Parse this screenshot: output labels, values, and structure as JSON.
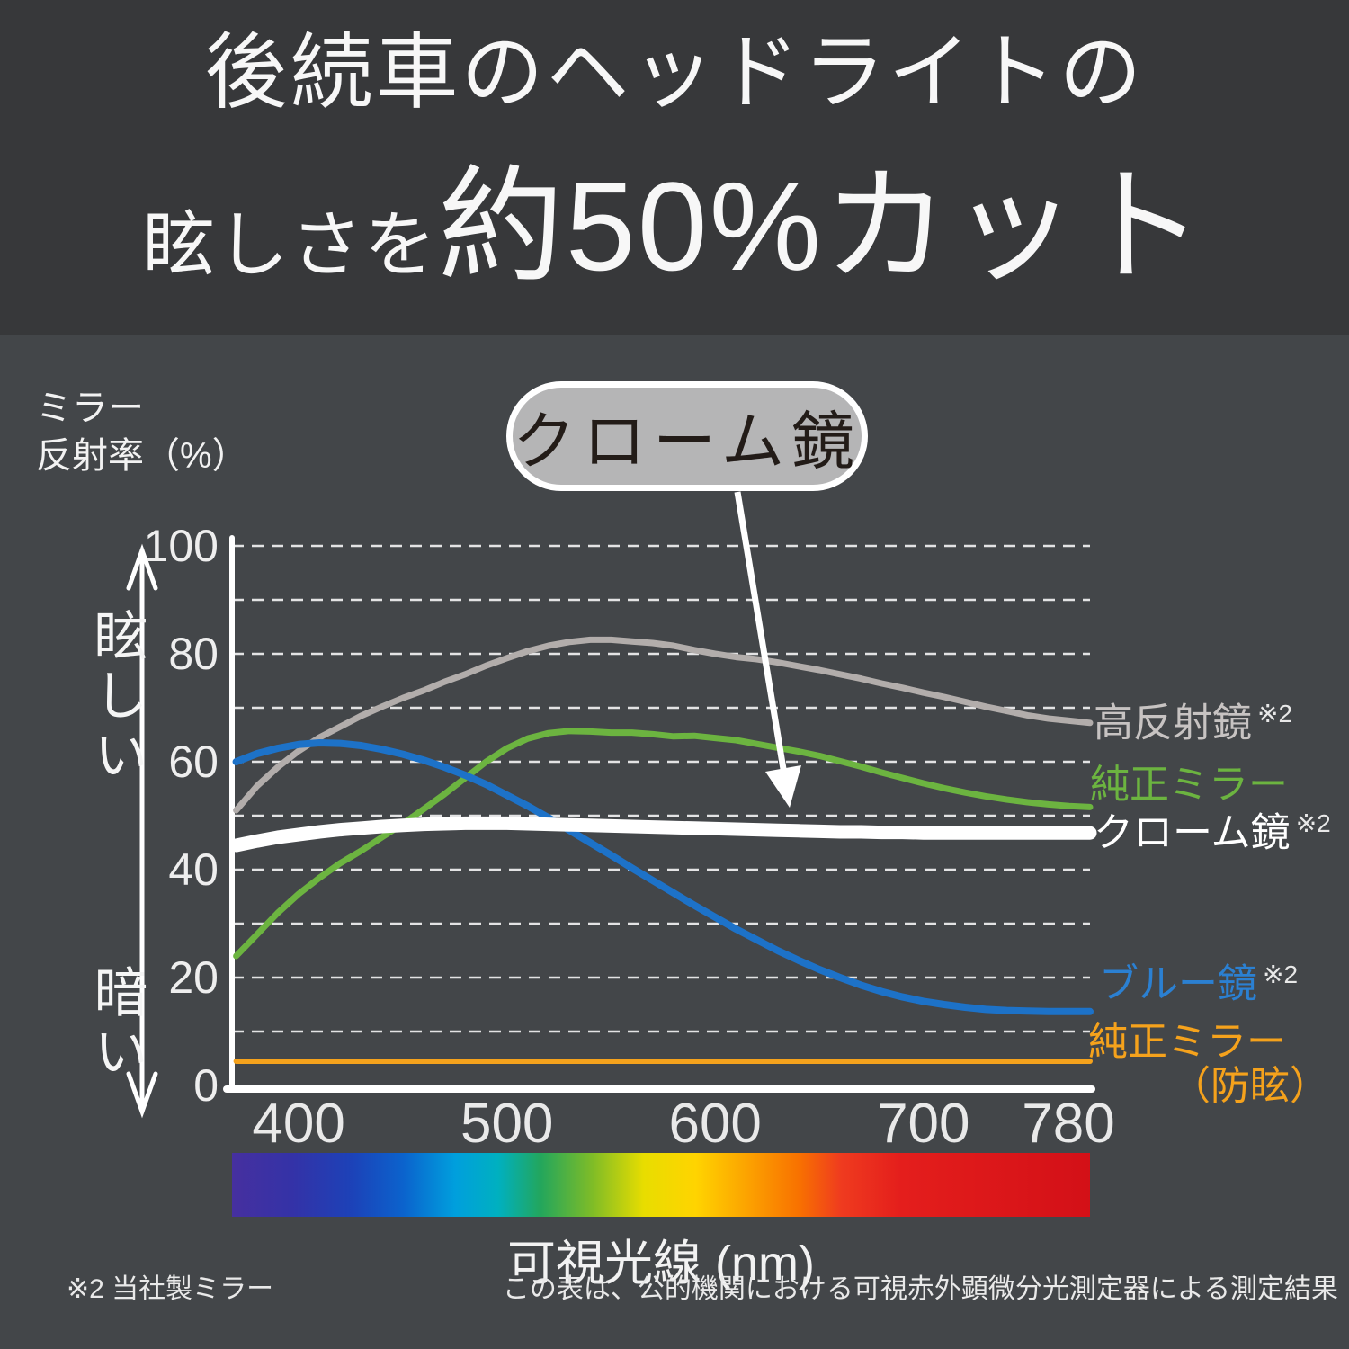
{
  "banner": {
    "title_line1": "後続車のヘッドライトの",
    "title_line2_small": "眩しさを",
    "title_line2_large": "約50%カット"
  },
  "chart": {
    "y_axis_title_line1": "ミラー",
    "y_axis_title_line2": "反射率（%）",
    "y_top_label": "眩しい",
    "y_bottom_label": "暗い",
    "callout_label": "クローム鏡",
    "x_axis_title": "可視光線 (nm)"
  },
  "chart_data": {
    "type": "line",
    "title": "後続車のヘッドライトの眩しさを約50%カット",
    "xlabel": "可視光線 (nm)",
    "ylabel": "ミラー反射率（%）",
    "xlim": [
      368,
      780
    ],
    "ylim": [
      0,
      100
    ],
    "grid": "horizontal dashed every 10",
    "legend_position": "right of curve ends",
    "x_ticks": [
      {
        "label": "400",
        "nm": 400
      },
      {
        "label": "500",
        "nm": 500
      },
      {
        "label": "600",
        "nm": 600
      },
      {
        "label": "700",
        "nm": 700
      },
      {
        "label": "780",
        "nm": 780
      }
    ],
    "y_ticks": [
      {
        "label": "100",
        "value": 100
      },
      {
        "label": "80",
        "value": 80
      },
      {
        "label": "60",
        "value": 60
      },
      {
        "label": "40",
        "value": 40
      },
      {
        "label": "20",
        "value": 20
      },
      {
        "label": "0",
        "value": 0
      }
    ],
    "x": [
      370,
      380,
      390,
      400,
      410,
      420,
      430,
      440,
      450,
      460,
      470,
      480,
      490,
      500,
      510,
      520,
      530,
      540,
      550,
      560,
      570,
      580,
      590,
      600,
      610,
      620,
      630,
      640,
      650,
      660,
      670,
      680,
      690,
      700,
      710,
      720,
      730,
      740,
      750,
      760,
      770,
      780
    ],
    "series": [
      {
        "key": "high-reflection-mirror",
        "label": "高反射鏡",
        "note_ref": "※2",
        "color": "#b2adab",
        "label_color": "#c7c3c2",
        "stroke_width": 7,
        "values": [
          51,
          55.5,
          59,
          62,
          64.5,
          66.5,
          68.5,
          70.2,
          71.8,
          73.2,
          74.8,
          76.2,
          77.8,
          79.2,
          80.5,
          81.5,
          82.2,
          82.6,
          82.6,
          82.3,
          82,
          81.5,
          80.7,
          80,
          79.4,
          79,
          78.4,
          77.7,
          77,
          76.2,
          75.4,
          74.5,
          73.7,
          72.8,
          72,
          71.1,
          70.2,
          69.4,
          68.6,
          68,
          67.6,
          67.2
        ]
      },
      {
        "key": "genuine-mirror",
        "label": "純正ミラー",
        "note_ref": "",
        "color": "#6cb440",
        "label_color": "#6cb440",
        "stroke_width": 7,
        "values": [
          24,
          28,
          32,
          35.5,
          38.5,
          41.2,
          43.5,
          46,
          48.5,
          51.2,
          54,
          57,
          60,
          62.5,
          64.3,
          65.3,
          65.7,
          65.6,
          65.4,
          65.4,
          65.1,
          64.7,
          64.8,
          64.4,
          64,
          63.3,
          62.6,
          61.9,
          61.1,
          60.1,
          59.1,
          58,
          57,
          56,
          55.1,
          54.3,
          53.6,
          53,
          52.5,
          52.1,
          51.8,
          51.6
        ]
      },
      {
        "key": "blue-mirror",
        "label": "ブルー鏡",
        "note_ref": "※2",
        "color": "#1d72c8",
        "label_color": "#2b80d2",
        "stroke_width": 8,
        "values": [
          60,
          61.5,
          62.5,
          63.2,
          63.5,
          63.4,
          63,
          62.3,
          61.4,
          60.3,
          59,
          57.5,
          55.8,
          53.8,
          51.8,
          49.6,
          47.3,
          45,
          42.7,
          40.3,
          38,
          35.7,
          33.4,
          31.2,
          29,
          27,
          25,
          23.2,
          21.5,
          20,
          18.6,
          17.4,
          16.4,
          15.6,
          15,
          14.5,
          14.1,
          13.9,
          13.8,
          13.7,
          13.7,
          13.7
        ]
      },
      {
        "key": "genuine-mirror-antiglare",
        "label": "純正ミラー",
        "label_line2": "（防眩）",
        "note_ref": "",
        "color": "#f5a21c",
        "label_color": "#f5a21c",
        "stroke_width": 6,
        "values": [
          4.5,
          4.5,
          4.5,
          4.5,
          4.5,
          4.5,
          4.5,
          4.5,
          4.5,
          4.5,
          4.5,
          4.5,
          4.5,
          4.5,
          4.5,
          4.5,
          4.5,
          4.5,
          4.5,
          4.5,
          4.5,
          4.5,
          4.5,
          4.5,
          4.5,
          4.5,
          4.5,
          4.5,
          4.5,
          4.5,
          4.5,
          4.5,
          4.5,
          4.5,
          4.5,
          4.5,
          4.5,
          4.5,
          4.5,
          4.5,
          4.5,
          4.5
        ]
      },
      {
        "key": "chrome-mirror",
        "label": "クローム鏡",
        "note_ref": "※2",
        "color": "#ffffff",
        "label_color": "#ffffff",
        "stroke_width": 15,
        "values": [
          44.5,
          45.3,
          46,
          46.5,
          47,
          47.4,
          47.7,
          48,
          48.2,
          48.4,
          48.5,
          48.6,
          48.6,
          48.6,
          48.5,
          48.4,
          48.3,
          48.2,
          48.1,
          48,
          47.9,
          47.8,
          47.7,
          47.6,
          47.5,
          47.4,
          47.3,
          47.2,
          47.1,
          47,
          47,
          46.9,
          46.9,
          46.8,
          46.8,
          46.8,
          46.8,
          46.8,
          46.8,
          46.8,
          46.8,
          46.8
        ]
      }
    ],
    "spectrum_bar": {
      "description": "visible light spectrum gradient bar",
      "stops": [
        [
          0,
          "#46309f"
        ],
        [
          0.07,
          "#3432a7"
        ],
        [
          0.14,
          "#1c42b8"
        ],
        [
          0.2,
          "#0b63cd"
        ],
        [
          0.26,
          "#009fdd"
        ],
        [
          0.31,
          "#00b0c0"
        ],
        [
          0.36,
          "#23a65c"
        ],
        [
          0.42,
          "#7fbc27"
        ],
        [
          0.48,
          "#e8dd00"
        ],
        [
          0.54,
          "#ffd400"
        ],
        [
          0.6,
          "#fca300"
        ],
        [
          0.66,
          "#f87200"
        ],
        [
          0.71,
          "#ef3b1f"
        ],
        [
          0.78,
          "#e41e1c"
        ],
        [
          1,
          "#d31017"
        ]
      ]
    },
    "colors": {
      "banner_bg": "#37383a",
      "chart_bg": "#434649",
      "gridline": "#ffffff",
      "axis": "#ffffff",
      "callout_bg": "#b5b5b6",
      "callout_text": "#231c18"
    }
  },
  "footnotes": {
    "left": "※2 当社製ミラー",
    "right": "この表は、公的機関における可視赤外顕微分光測定器による測定結果"
  }
}
